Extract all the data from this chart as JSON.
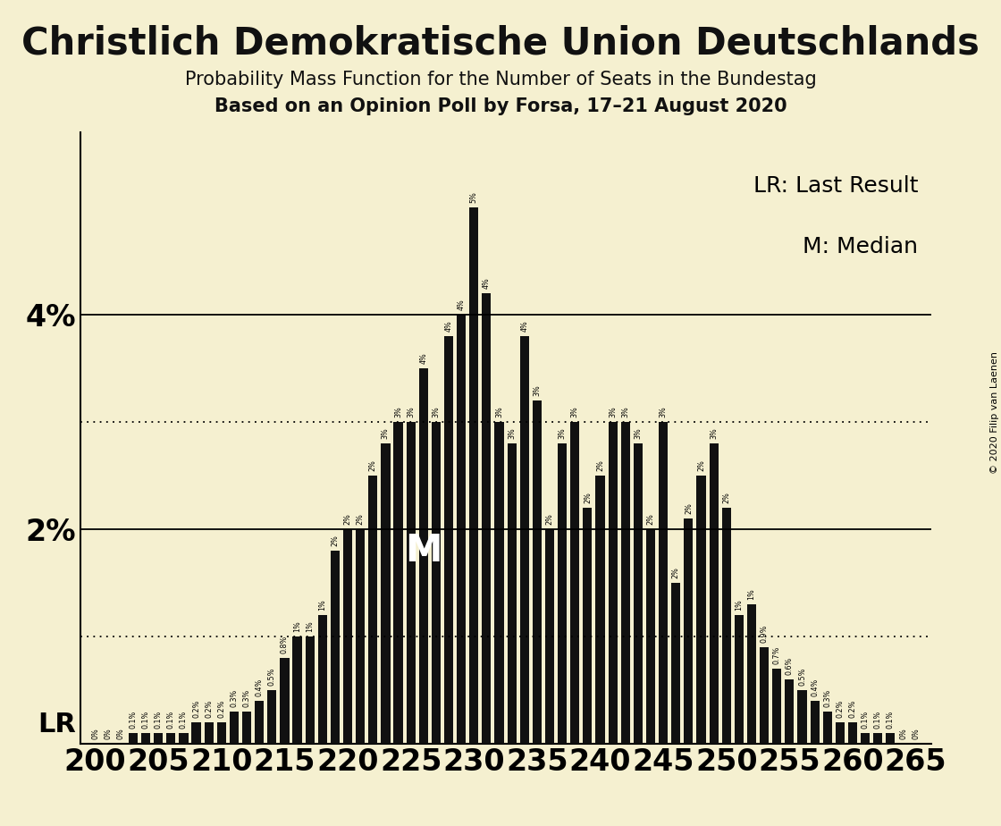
{
  "title": "Christlich Demokratische Union Deutschlands",
  "subtitle1": "Probability Mass Function for the Number of Seats in the Bundestag",
  "subtitle2": "Based on an Opinion Poll by Forsa, 17–21 August 2020",
  "copyright": "© 2020 Filip van Laenen",
  "background_color": "#f5f0d0",
  "bar_color": "#111111",
  "text_color": "#111111",
  "lr_seat": 200,
  "median_seat": 229,
  "seats": [
    200,
    201,
    202,
    203,
    204,
    205,
    206,
    207,
    208,
    209,
    210,
    211,
    212,
    213,
    214,
    215,
    216,
    217,
    218,
    219,
    220,
    221,
    222,
    223,
    224,
    225,
    226,
    227,
    228,
    229,
    230,
    231,
    232,
    233,
    234,
    235,
    236,
    237,
    238,
    239,
    240,
    241,
    242,
    243,
    244,
    245,
    246,
    247,
    248,
    249,
    250,
    251,
    252,
    253,
    254,
    255,
    256,
    257,
    258,
    259,
    260,
    261,
    262,
    263,
    264,
    265
  ],
  "values": [
    0.0,
    0.0,
    0.0,
    0.001,
    0.001,
    0.001,
    0.001,
    0.001,
    0.002,
    0.002,
    0.002,
    0.003,
    0.003,
    0.004,
    0.005,
    0.008,
    0.01,
    0.01,
    0.012,
    0.018,
    0.02,
    0.02,
    0.025,
    0.028,
    0.03,
    0.03,
    0.035,
    0.03,
    0.038,
    0.04,
    0.05,
    0.042,
    0.03,
    0.028,
    0.038,
    0.032,
    0.02,
    0.028,
    0.03,
    0.022,
    0.025,
    0.03,
    0.03,
    0.028,
    0.02,
    0.03,
    0.015,
    0.021,
    0.025,
    0.028,
    0.022,
    0.012,
    0.013,
    0.009,
    0.007,
    0.006,
    0.005,
    0.004,
    0.003,
    0.002,
    0.002,
    0.001,
    0.001,
    0.001,
    0.0005,
    0.0005
  ],
  "ylim": [
    0,
    0.057
  ],
  "dotted_lines": [
    0.01,
    0.03
  ],
  "solid_lines": [
    0.02,
    0.04
  ],
  "xtick_seats": [
    200,
    205,
    210,
    215,
    220,
    225,
    230,
    235,
    240,
    245,
    250,
    255,
    260,
    265
  ]
}
